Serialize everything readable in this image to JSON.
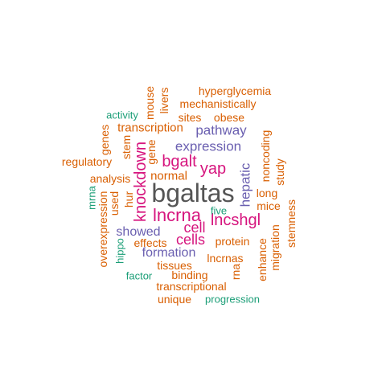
{
  "colors": {
    "gray": "#555555",
    "pink": "#d6157e",
    "purple": "#6a5fb0",
    "orange": "#d95f02",
    "green": "#1b9e77"
  },
  "words": {
    "bgaltas": "bgaltas",
    "lncrna": "lncrna",
    "knockdown": "knockdown",
    "bgalt": "bgalt",
    "yap": "yap",
    "lncshgl": "lncshgl",
    "cells": "cells",
    "cell": "cell",
    "expression": "expression",
    "pathway": "pathway",
    "formation": "formation",
    "showed": "showed",
    "hepatic": "hepatic",
    "transcription": "transcription",
    "normal": "normal",
    "hyperglycemia": "hyperglycemia",
    "mechanistically": "mechanistically",
    "sites": "sites",
    "obese": "obese",
    "activity": "activity",
    "mouse": "mouse",
    "livers": "livers",
    "genes": "genes",
    "stem": "stem",
    "gene": "gene",
    "regulatory": "regulatory",
    "analysis": "analysis",
    "noncoding": "noncoding",
    "study": "study",
    "long": "long",
    "mice": "mice",
    "mrna": "mrna",
    "used": "used",
    "hur": "hur",
    "five": "five",
    "stemness": "stemness",
    "overexpression": "overexpression",
    "effects": "effects",
    "protein": "protein",
    "migration": "migration",
    "enhance": "enhance",
    "hippo": "hippo",
    "lncrnas": "lncrnas",
    "tissues": "tissues",
    "rna": "rna",
    "factor": "factor",
    "binding": "binding",
    "transcriptional": "transcriptional",
    "unique": "unique",
    "progression": "progression"
  }
}
